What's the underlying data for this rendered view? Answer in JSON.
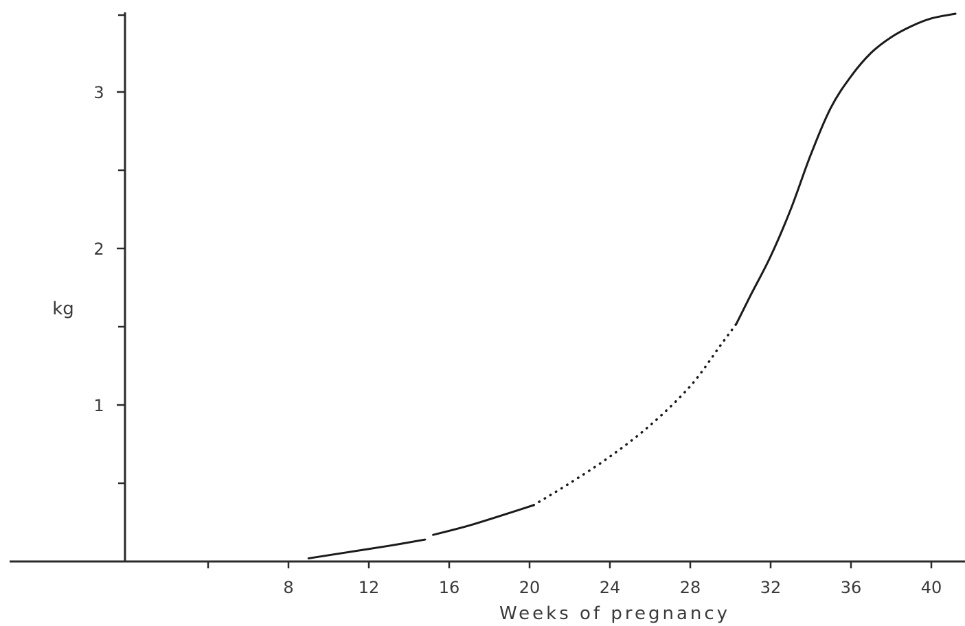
{
  "chart_data": {
    "type": "line",
    "title": "",
    "xlabel": "Weeks of pregnancy",
    "ylabel": "kg",
    "xlim": [
      -2,
      41.2
    ],
    "ylim": [
      0,
      3.5
    ],
    "x_ticks": [
      8,
      12,
      16,
      20,
      24,
      28,
      32,
      36,
      40
    ],
    "y_ticks": [
      1,
      2,
      3
    ],
    "y_minor_ticks": [
      0.5,
      1.5,
      2.5
    ],
    "x_minor_ticks": [
      4
    ],
    "grid": false,
    "legend": "none",
    "line_color": "#1a1a1a",
    "series": [
      {
        "segments": [
          {
            "style": "solid",
            "x": [
              9,
              11,
              13,
              14.8
            ],
            "y": [
              0.02,
              0.06,
              0.1,
              0.14
            ]
          },
          {
            "style": "solid",
            "x": [
              15.2,
              17,
              19,
              20.2
            ],
            "y": [
              0.17,
              0.23,
              0.31,
              0.36
            ]
          },
          {
            "style": "dotted",
            "x": [
              20.2,
              22,
              24,
              26,
              28,
              29.5,
              30.3
            ],
            "y": [
              0.36,
              0.5,
              0.67,
              0.87,
              1.12,
              1.38,
              1.52
            ]
          },
          {
            "style": "solid",
            "x": [
              30.3,
              31,
              32,
              33,
              34,
              35,
              36,
              37,
              38,
              39,
              40,
              41.2
            ],
            "y": [
              1.52,
              1.7,
              1.95,
              2.25,
              2.6,
              2.9,
              3.1,
              3.25,
              3.35,
              3.42,
              3.47,
              3.5
            ]
          }
        ]
      }
    ]
  }
}
